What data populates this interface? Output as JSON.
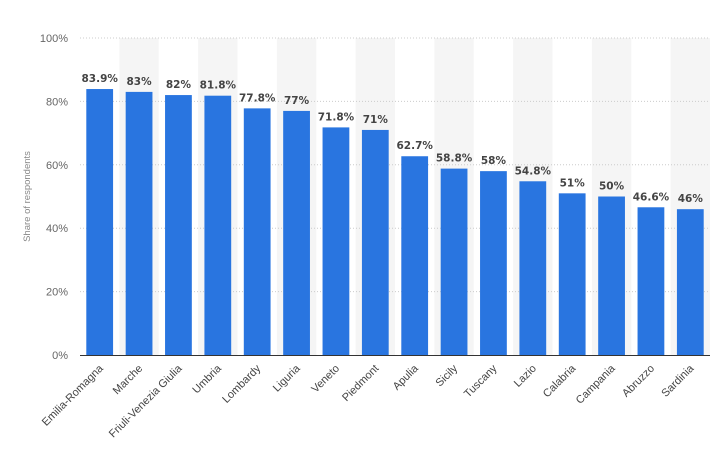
{
  "chart_data": {
    "type": "bar",
    "categories": [
      "Emilia-Romagna",
      "Marche",
      "Friuli-Venezia Giulia",
      "Umbria",
      "Lombardy",
      "Liguria",
      "Veneto",
      "Piedmont",
      "Apulia",
      "Sicily",
      "Tuscany",
      "Lazio",
      "Calabria",
      "Campania",
      "Abruzzo",
      "Sardinia"
    ],
    "values": [
      83.9,
      83,
      82,
      81.8,
      77.8,
      77,
      71.8,
      71,
      62.7,
      58.8,
      58,
      54.8,
      51,
      50,
      46.6,
      46
    ],
    "value_labels": [
      "83.9%",
      "83%",
      "82%",
      "81.8%",
      "77.8%",
      "77%",
      "71.8%",
      "71%",
      "62.7%",
      "58.8%",
      "58%",
      "54.8%",
      "51%",
      "50%",
      "46.6%",
      "46%"
    ],
    "ylabel": "Share of respondents",
    "xlabel": "",
    "ylim": [
      0,
      100
    ],
    "yticks": [
      "0%",
      "20%",
      "40%",
      "60%",
      "80%",
      "100%"
    ],
    "grid": true,
    "colors": {
      "bar": "#2975e0",
      "band": "#f5f5f5",
      "grid": "#cccccc",
      "axis": "#333333"
    }
  }
}
